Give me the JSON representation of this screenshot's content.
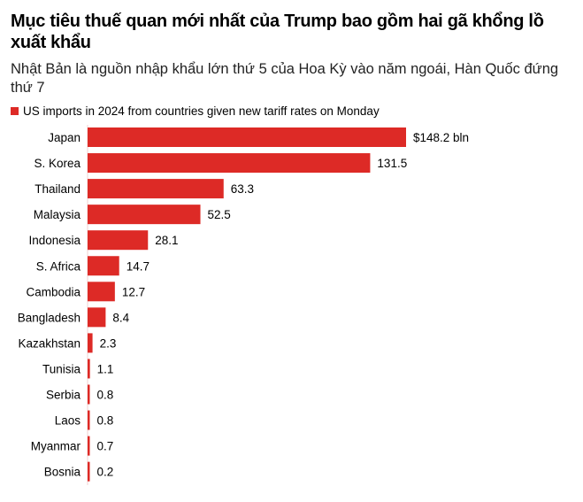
{
  "title": "Mục tiêu thuế quan mới nhất của Trump bao gồm hai gã khổng lồ xuất khẩu",
  "subtitle": "Nhật Bản là nguồn nhập khẩu lớn thứ 5 của Hoa Kỳ vào năm ngoái, Hàn Quốc đứng thứ 7",
  "chart_data": {
    "type": "bar",
    "orientation": "horizontal",
    "categories": [
      "Japan",
      "S. Korea",
      "Thailand",
      "Malaysia",
      "Indonesia",
      "S. Africa",
      "Cambodia",
      "Bangladesh",
      "Kazakhstan",
      "Tunisia",
      "Serbia",
      "Laos",
      "Myanmar",
      "Bosnia"
    ],
    "series": [
      {
        "name": "US imports in 2024 from countries given new tariff rates on Monday",
        "values": [
          148.2,
          131.5,
          63.3,
          52.5,
          28.1,
          14.7,
          12.7,
          8.4,
          2.3,
          1.1,
          0.8,
          0.8,
          0.7,
          0.2
        ]
      }
    ],
    "value_labels": [
      "$148.2 bln",
      "131.5",
      "63.3",
      "52.5",
      "28.1",
      "14.7",
      "12.7",
      "8.4",
      "2.3",
      "1.1",
      "0.8",
      "0.8",
      "0.7",
      "0.2"
    ],
    "legend_position": "top-left",
    "grid": false,
    "color": "#dd2a26"
  }
}
